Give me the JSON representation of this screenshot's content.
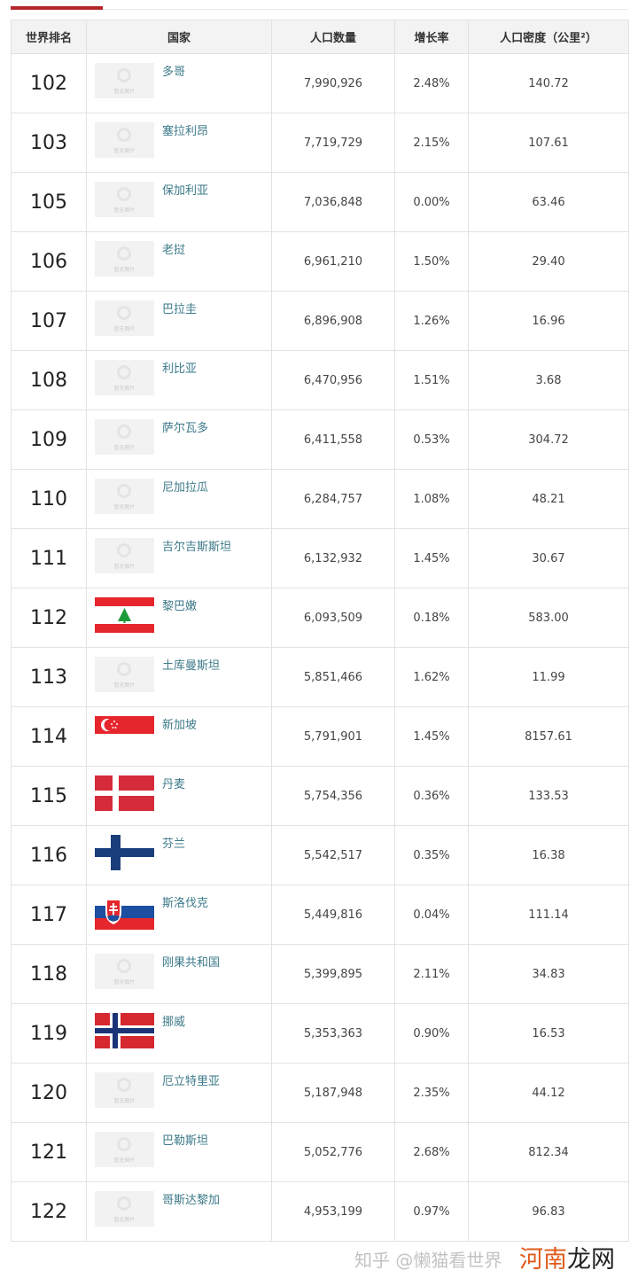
{
  "headers": [
    "世界排名",
    "国家",
    "人口数量",
    "增长率",
    "人口密度（公里²）"
  ],
  "placeholder_text": "暂无图片",
  "rows": [
    {
      "rank": "102",
      "country": "多哥",
      "population": "7,990,926",
      "growth": "2.48%",
      "density": "140.72",
      "flag": "placeholder"
    },
    {
      "rank": "103",
      "country": "塞拉利昂",
      "population": "7,719,729",
      "growth": "2.15%",
      "density": "107.61",
      "flag": "placeholder"
    },
    {
      "rank": "105",
      "country": "保加利亚",
      "population": "7,036,848",
      "growth": "0.00%",
      "density": "63.46",
      "flag": "placeholder"
    },
    {
      "rank": "106",
      "country": "老挝",
      "population": "6,961,210",
      "growth": "1.50%",
      "density": "29.40",
      "flag": "placeholder"
    },
    {
      "rank": "107",
      "country": "巴拉圭",
      "population": "6,896,908",
      "growth": "1.26%",
      "density": "16.96",
      "flag": "placeholder"
    },
    {
      "rank": "108",
      "country": "利比亚",
      "population": "6,470,956",
      "growth": "1.51%",
      "density": "3.68",
      "flag": "placeholder"
    },
    {
      "rank": "109",
      "country": "萨尔瓦多",
      "population": "6,411,558",
      "growth": "0.53%",
      "density": "304.72",
      "flag": "placeholder"
    },
    {
      "rank": "110",
      "country": "尼加拉瓜",
      "population": "6,284,757",
      "growth": "1.08%",
      "density": "48.21",
      "flag": "placeholder"
    },
    {
      "rank": "111",
      "country": "吉尔吉斯斯坦",
      "population": "6,132,932",
      "growth": "1.45%",
      "density": "30.67",
      "flag": "placeholder"
    },
    {
      "rank": "112",
      "country": "黎巴嫩",
      "population": "6,093,509",
      "growth": "0.18%",
      "density": "583.00",
      "flag": "lebanon"
    },
    {
      "rank": "113",
      "country": "土库曼斯坦",
      "population": "5,851,466",
      "growth": "1.62%",
      "density": "11.99",
      "flag": "placeholder"
    },
    {
      "rank": "114",
      "country": "新加坡",
      "population": "5,791,901",
      "growth": "1.45%",
      "density": "8157.61",
      "flag": "singapore"
    },
    {
      "rank": "115",
      "country": "丹麦",
      "population": "5,754,356",
      "growth": "0.36%",
      "density": "133.53",
      "flag": "denmark"
    },
    {
      "rank": "116",
      "country": "芬兰",
      "population": "5,542,517",
      "growth": "0.35%",
      "density": "16.38",
      "flag": "finland"
    },
    {
      "rank": "117",
      "country": "斯洛伐克",
      "population": "5,449,816",
      "growth": "0.04%",
      "density": "111.14",
      "flag": "slovakia"
    },
    {
      "rank": "118",
      "country": "刚果共和国",
      "population": "5,399,895",
      "growth": "2.11%",
      "density": "34.83",
      "flag": "placeholder"
    },
    {
      "rank": "119",
      "country": "挪威",
      "population": "5,353,363",
      "growth": "0.90%",
      "density": "16.53",
      "flag": "norway"
    },
    {
      "rank": "120",
      "country": "厄立特里亚",
      "population": "5,187,948",
      "growth": "2.35%",
      "density": "44.12",
      "flag": "placeholder"
    },
    {
      "rank": "121",
      "country": "巴勒斯坦",
      "population": "5,052,776",
      "growth": "2.68%",
      "density": "812.34",
      "flag": "placeholder"
    },
    {
      "rank": "122",
      "country": "哥斯达黎加",
      "population": "4,953,199",
      "growth": "0.97%",
      "density": "96.83",
      "flag": "placeholder"
    }
  ],
  "watermark": {
    "zhihu": "知乎 @懒猫看世界",
    "site_a": "河南",
    "site_b": "龙网"
  },
  "colors": {
    "accent": "#b3262b",
    "link": "#3d7a8a"
  }
}
